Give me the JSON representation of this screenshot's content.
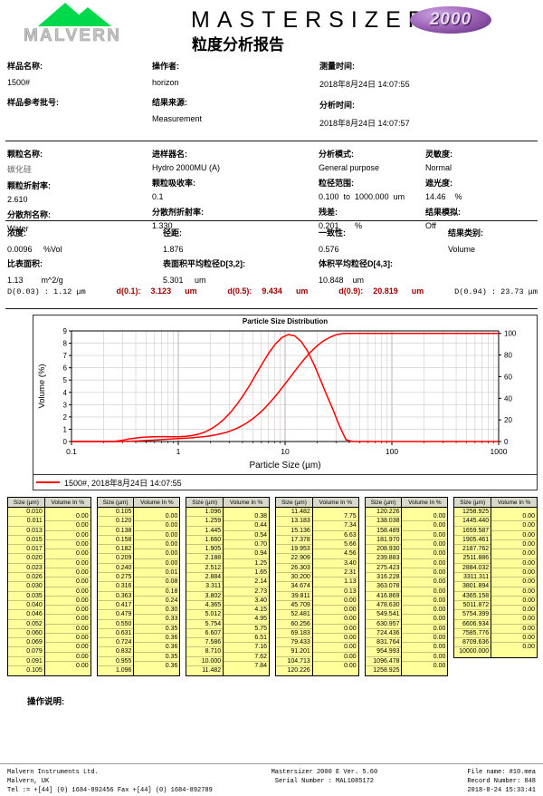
{
  "header": {
    "logo_text": "MALVERN",
    "product": "MASTERSIZER",
    "badge": "2000",
    "report_title": "粒度分析报告"
  },
  "info1": {
    "col1": [
      {
        "label": "样品名称:",
        "value": "1500#"
      },
      {
        "label": "样品参考批号:",
        "value": ""
      }
    ],
    "col2": [
      {
        "label": "操作者:",
        "value": "horizon"
      },
      {
        "label": "结果来源:",
        "value": "Measurement"
      }
    ],
    "col3": [
      {
        "label": "测量时间:",
        "value": "2018年8月24日 14:07:55"
      },
      {
        "label": "分析时间:",
        "value": "2018年8月24日 14:07:57"
      }
    ]
  },
  "info2": {
    "col1": [
      {
        "label": "颗粒名称:",
        "value": "碳化硅"
      },
      {
        "label": "颗粒折射率:",
        "value": "2.610"
      },
      {
        "label": "分散剂名称:",
        "value": "Water"
      }
    ],
    "col2": [
      {
        "label": "进样器名:",
        "value": "Hydro 2000MU (A)"
      },
      {
        "label": "颗粒吸收率:",
        "value": "0.1"
      },
      {
        "label": "分散剂折射率:",
        "value": "1.330"
      }
    ],
    "col3": [
      {
        "label": "分析模式:",
        "value": "General purpose"
      },
      {
        "label": "粒径范围:",
        "value": "0.100  to  1000.000  um"
      },
      {
        "label": "残差:",
        "value": "0.201       %"
      }
    ],
    "col4": [
      {
        "label": "灵敏度:",
        "value": "Normal"
      },
      {
        "label": "遮光度:",
        "value": "14.46    %"
      },
      {
        "label": "结果模拟:",
        "value": "Off"
      }
    ]
  },
  "info3": {
    "row1": [
      {
        "label": "浓度:",
        "value": "0.0096     %Vol"
      },
      {
        "label": "径距:",
        "value": "1.876"
      },
      {
        "label": "一致性:",
        "value": "0.576"
      },
      {
        "label": "结果类别:",
        "value": "Volume"
      }
    ],
    "row2": [
      {
        "label": "比表面积:",
        "value": "1.13        m^2/g"
      },
      {
        "label": "表面积平均粒径D[3,2]:",
        "value": "5.301     um"
      },
      {
        "label": "体积平均粒径D[4,3]:",
        "value": "10.848    um"
      }
    ]
  },
  "dvalues": {
    "left": "D(0.03) : 1.12 μm",
    "items": [
      {
        "label": "d(0.1):",
        "value": "3.123",
        "unit": "um"
      },
      {
        "label": "d(0.5):",
        "value": "9.434",
        "unit": "um"
      },
      {
        "label": "d(0.9):",
        "value": "20.819",
        "unit": "um"
      }
    ],
    "right": "D(0.94) : 23.73 μm"
  },
  "chart_data": {
    "type": "line",
    "title": "Particle Size Distribution",
    "xlabel": "Particle Size (µm)",
    "ylabel": "Volume (%)",
    "xlim": [
      0.1,
      1000
    ],
    "x_ticks": [
      "0.1",
      "1",
      "10",
      "100",
      "1000"
    ],
    "ylim_left": [
      0,
      9
    ],
    "left_ticks": [
      0,
      1,
      2,
      3,
      4,
      5,
      6,
      7,
      8,
      9
    ],
    "ylim_right": [
      0,
      100
    ],
    "right_ticks": [
      0,
      20,
      40,
      60,
      80,
      100
    ],
    "grid": true,
    "legend": "1500#, 2018年8月24日 14:07:55",
    "series_color": "#ff0000",
    "series": [
      {
        "name": "volume-frequency",
        "yaxis": "left",
        "source": "volume_in_percent per size band"
      },
      {
        "name": "cumulative-volume",
        "yaxis": "right",
        "source": "running sum of volume_in_percent"
      }
    ],
    "sizes": [
      "0.010",
      "0.011",
      "0.013",
      "0.015",
      "0.017",
      "0.020",
      "0.023",
      "0.026",
      "0.030",
      "0.035",
      "0.040",
      "0.046",
      "0.052",
      "0.060",
      "0.069",
      "0.079",
      "0.091",
      "0.105",
      "0.120",
      "0.138",
      "0.158",
      "0.182",
      "0.209",
      "0.240",
      "0.275",
      "0.316",
      "0.363",
      "0.417",
      "0.479",
      "0.550",
      "0.631",
      "0.724",
      "0.832",
      "0.955",
      "1.096",
      "1.259",
      "1.445",
      "1.660",
      "1.905",
      "2.188",
      "2.512",
      "2.884",
      "3.311",
      "3.802",
      "4.365",
      "5.012",
      "5.754",
      "6.607",
      "7.586",
      "8.710",
      "10.000",
      "11.482",
      "13.183",
      "15.136",
      "17.378",
      "19.953",
      "22.909",
      "26.303",
      "30.200",
      "34.674",
      "39.811",
      "45.709",
      "52.481",
      "60.256",
      "69.183",
      "79.433",
      "91.201",
      "104.713",
      "120.226",
      "138.038",
      "158.489",
      "181.970",
      "208.930",
      "239.883",
      "275.423",
      "316.228",
      "363.078",
      "416.869",
      "478.630",
      "549.541",
      "630.957",
      "724.436",
      "831.764",
      "954.993",
      "1096.478",
      "1258.925",
      "1445.440",
      "1659.587",
      "1905.461",
      "2187.762",
      "2511.886",
      "2884.032",
      "3311.311",
      "3801.894",
      "4365.158",
      "5011.872",
      "5754.399",
      "6606.934",
      "7585.776",
      "8709.636",
      "10000.000"
    ],
    "volume_in_percent": [
      "0.00",
      "0.00",
      "0.00",
      "0.00",
      "0.00",
      "0.00",
      "0.00",
      "0.00",
      "0.00",
      "0.00",
      "0.00",
      "0.00",
      "0.00",
      "0.00",
      "0.00",
      "0.00",
      "0.00",
      "0.00",
      "0.00",
      "0.00",
      "0.00",
      "0.00",
      "0.00",
      "0.01",
      "0.08",
      "0.18",
      "0.24",
      "0.30",
      "0.33",
      "0.35",
      "0.36",
      "0.36",
      "0.35",
      "0.36",
      "0.38",
      "0.44",
      "0.54",
      "0.70",
      "0.94",
      "1.25",
      "1.65",
      "2.14",
      "2.73",
      "3.40",
      "4.15",
      "4.95",
      "5.75",
      "6.51",
      "7.16",
      "7.62",
      "7.84",
      "7.75",
      "7.34",
      "6.63",
      "5.66",
      "4.56",
      "3.40",
      "2.31",
      "1.13",
      "0.13",
      "0.00",
      "0.00",
      "0.00",
      "0.00",
      "0.00",
      "0.00",
      "0.00",
      "0.00",
      "0.00",
      "0.00",
      "0.00",
      "0.00",
      "0.00",
      "0.00",
      "0.00",
      "0.00",
      "0.00",
      "0.00",
      "0.00",
      "0.00",
      "0.00",
      "0.00",
      "0.00",
      "0.00",
      "0.00",
      "0.00",
      "0.00",
      "0.00",
      "0.00",
      "0.00",
      "0.00",
      "0.00",
      "0.00",
      "0.00",
      "0.00",
      "0.00",
      "0.00",
      "0.00",
      "0.00",
      "0.00"
    ]
  },
  "tables": {
    "headers": [
      "Size (µm)",
      "Volume In %"
    ]
  },
  "notes": {
    "label": "操作说明:"
  },
  "footer": {
    "left": [
      "Malvern Instruments Ltd.",
      "Malvern, UK",
      "Tel := +[44] (0) 1684-892456 Fax +[44] (0) 1684-892789"
    ],
    "center": [
      "Mastersizer 2000 E Ver. 5.60",
      "Serial Number : MAL1085172"
    ],
    "right": [
      "File name: #10.mea",
      "Record Number: 848",
      "2018-8-24 15:33:41"
    ]
  }
}
